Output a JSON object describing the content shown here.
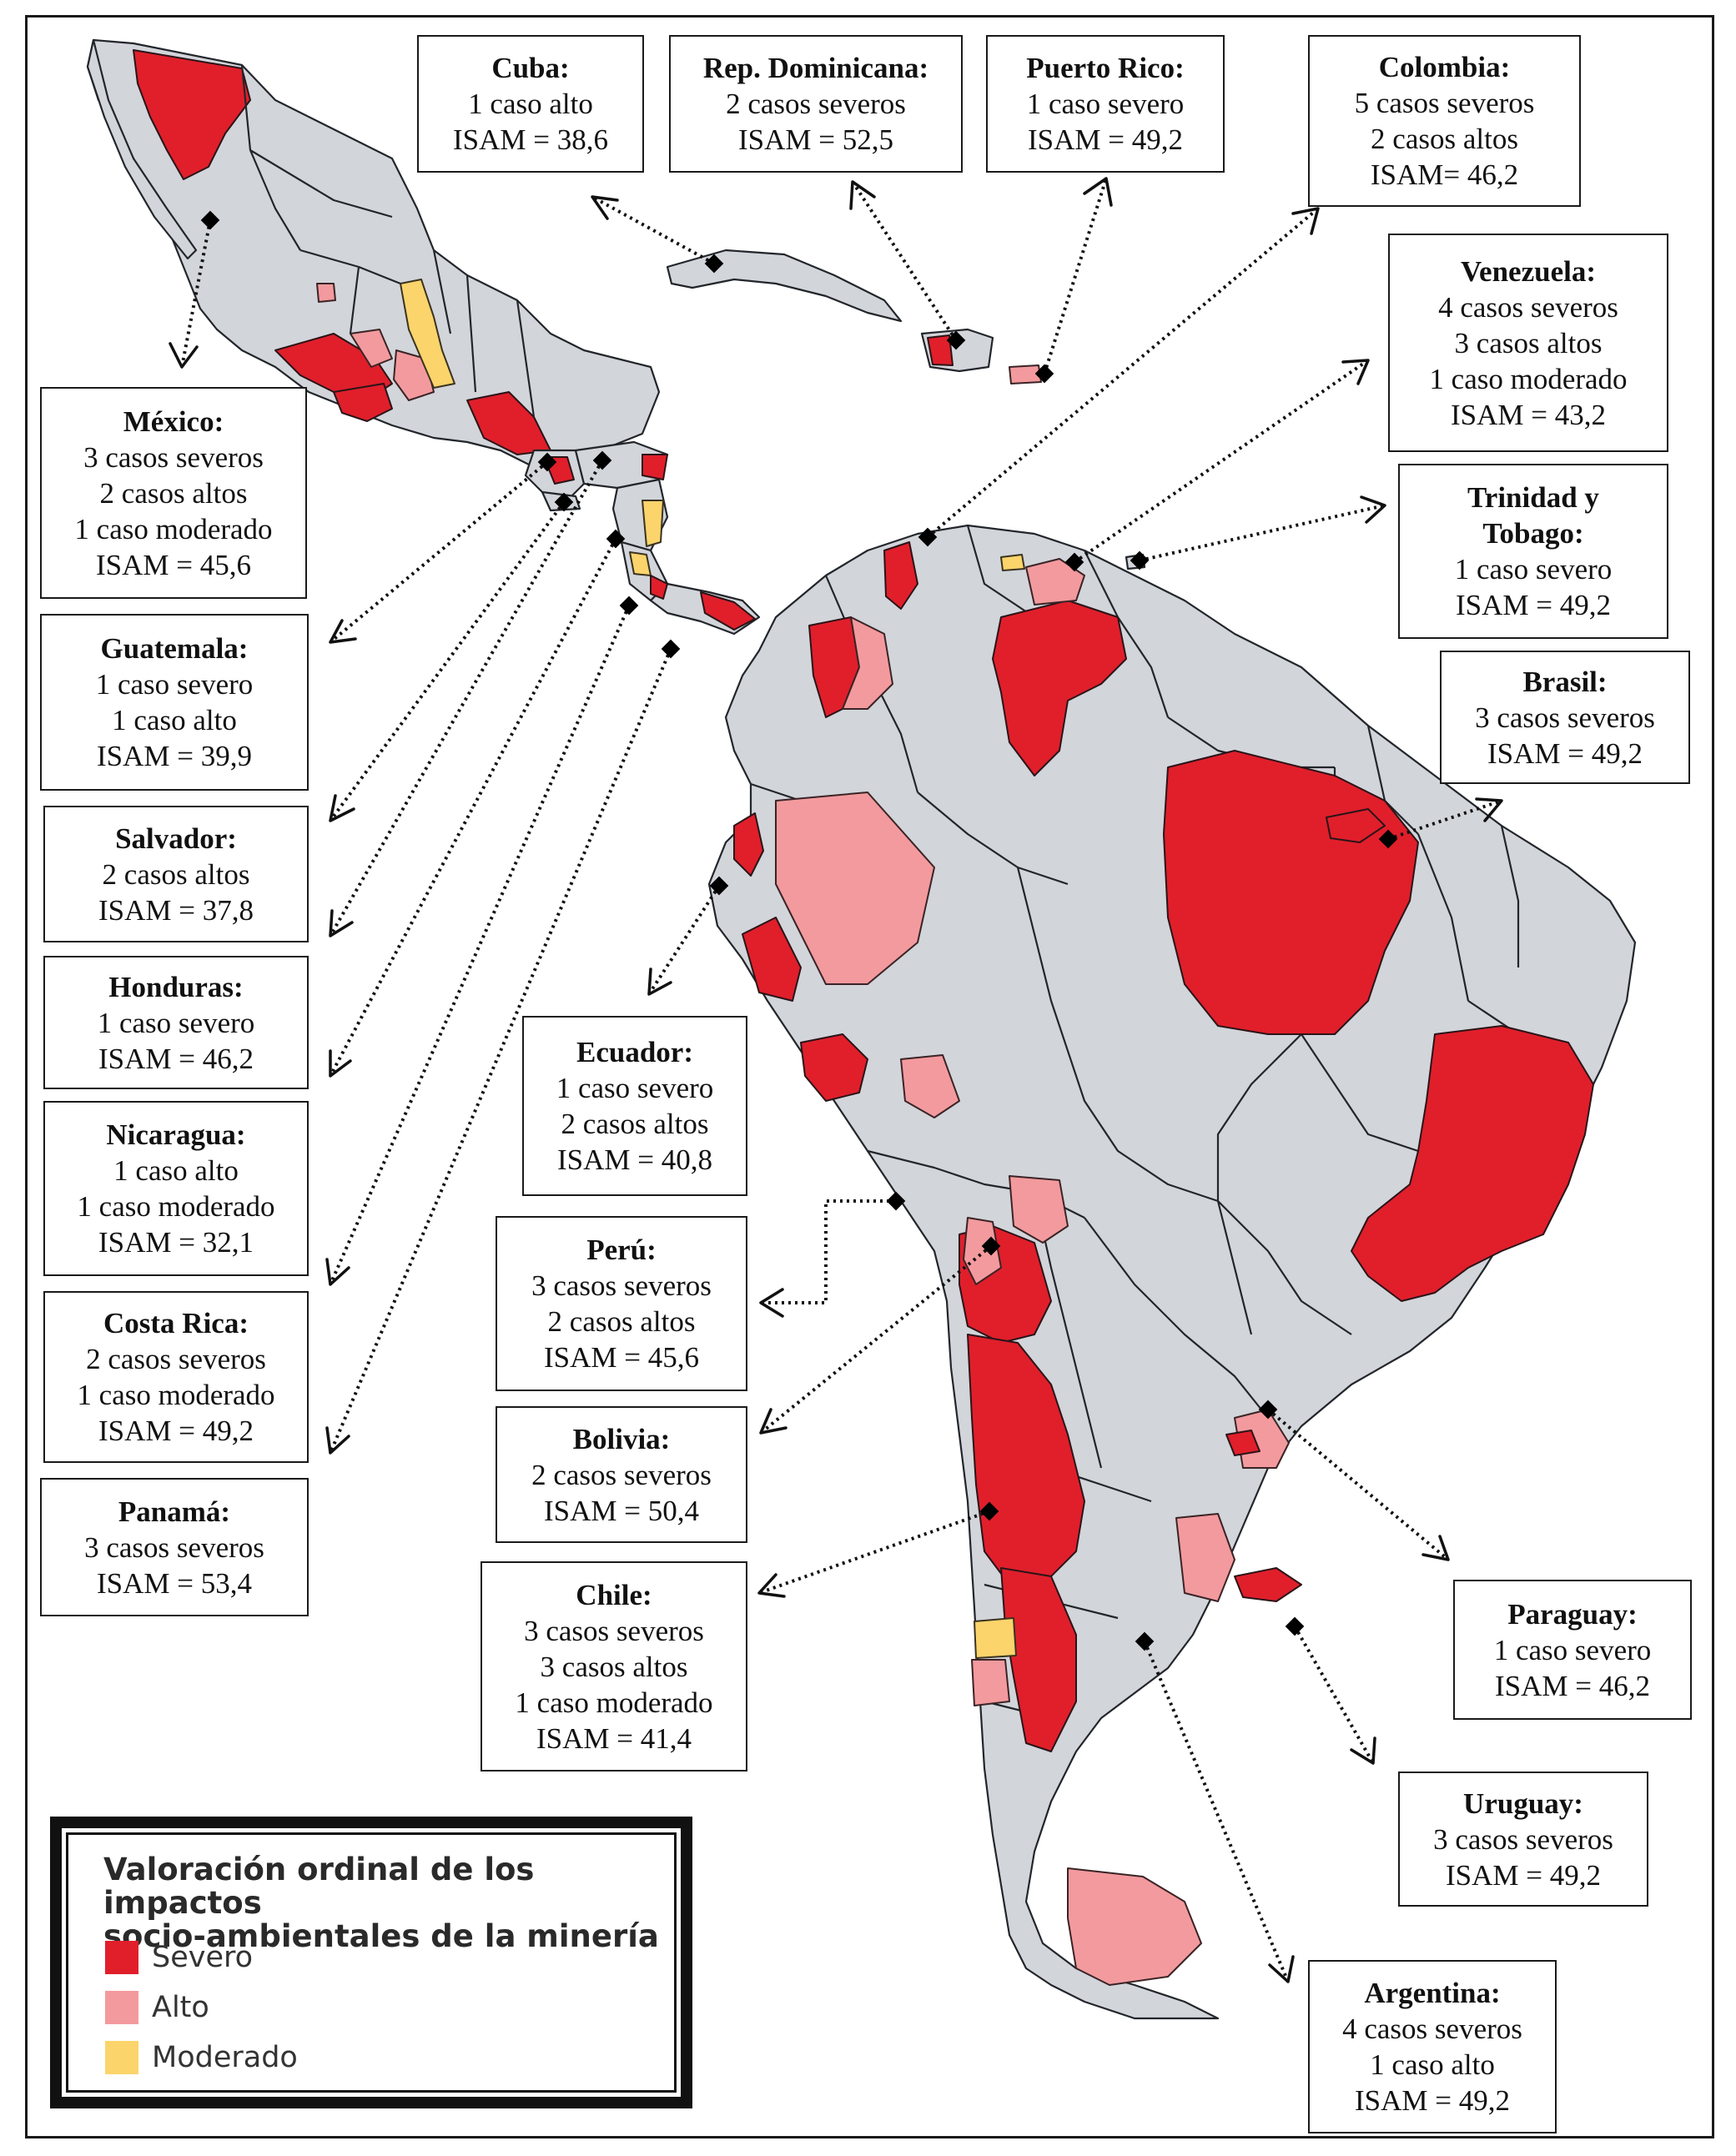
{
  "figure": {
    "colors": {
      "severo": "#e01f2b",
      "alto": "#f39a9e",
      "moderado": "#fbd46b",
      "land": "#d2d5da"
    }
  },
  "countries": {
    "cuba": {
      "name": "Cuba:",
      "lines": [
        "1 caso alto",
        "ISAM = 38,6"
      ]
    },
    "rep_dominicana": {
      "name": "Rep. Dominicana:",
      "lines": [
        "2 casos severos",
        "ISAM = 52,5"
      ]
    },
    "puerto_rico": {
      "name": "Puerto Rico:",
      "lines": [
        "1 caso severo",
        "ISAM = 49,2"
      ]
    },
    "colombia": {
      "name": "Colombia:",
      "lines": [
        "5 casos severos",
        "2 casos altos",
        "ISAM= 46,2"
      ]
    },
    "venezuela": {
      "name": "Venezuela:",
      "lines": [
        "4 casos severos",
        "3 casos altos",
        "1 caso moderado",
        "ISAM = 43,2"
      ]
    },
    "trinidad": {
      "name": "Trinidad y",
      "name2": "Tobago:",
      "lines": [
        "1 caso severo",
        "ISAM = 49,2"
      ]
    },
    "brasil": {
      "name": "Brasil:",
      "lines": [
        "3 casos severos",
        "ISAM = 49,2"
      ]
    },
    "mexico": {
      "name": "México:",
      "lines": [
        "3 casos severos",
        "2 casos altos",
        "1 caso moderado",
        "ISAM = 45,6"
      ]
    },
    "guatemala": {
      "name": "Guatemala:",
      "lines": [
        "1 caso severo",
        "1 caso alto",
        "ISAM = 39,9"
      ]
    },
    "salvador": {
      "name": "Salvador:",
      "lines": [
        "2 casos altos",
        "ISAM = 37,8"
      ]
    },
    "honduras": {
      "name": "Honduras:",
      "lines": [
        "1 caso severo",
        "ISAM = 46,2"
      ]
    },
    "nicaragua": {
      "name": "Nicaragua:",
      "lines": [
        "1 caso alto",
        "1 caso moderado",
        "ISAM = 32,1"
      ]
    },
    "costa_rica": {
      "name": "Costa Rica:",
      "lines": [
        "2 casos severos",
        "1 caso moderado",
        "ISAM = 49,2"
      ]
    },
    "panama": {
      "name": "Panamá:",
      "lines": [
        "3 casos severos",
        "ISAM = 53,4"
      ]
    },
    "ecuador": {
      "name": "Ecuador:",
      "lines": [
        "1 caso severo",
        "2 casos altos",
        "ISAM = 40,8"
      ]
    },
    "peru": {
      "name": "Perú:",
      "lines": [
        "3 casos severos",
        "2 casos altos",
        "ISAM = 45,6"
      ]
    },
    "bolivia": {
      "name": "Bolivia:",
      "lines": [
        "2 casos severos",
        "ISAM = 50,4"
      ]
    },
    "chile": {
      "name": "Chile:",
      "lines": [
        "3 casos severos",
        "3 casos altos",
        "1 caso moderado",
        "ISAM = 41,4"
      ]
    },
    "paraguay": {
      "name": "Paraguay:",
      "lines": [
        "1 caso severo",
        "ISAM = 46,2"
      ]
    },
    "uruguay": {
      "name": "Uruguay:",
      "lines": [
        "3 casos severos",
        "ISAM = 49,2"
      ]
    },
    "argentina": {
      "name": "Argentina:",
      "lines": [
        "4 casos severos",
        "1 caso alto",
        "ISAM = 49,2"
      ]
    }
  },
  "legend": {
    "title_line1": "Valoración ordinal de los impactos",
    "title_line2": "socio-ambientales de la minería",
    "items": [
      {
        "label": "Severo",
        "color": "#e01f2b"
      },
      {
        "label": "Alto",
        "color": "#f39a9e"
      },
      {
        "label": "Moderado",
        "color": "#fbd46b"
      }
    ]
  }
}
